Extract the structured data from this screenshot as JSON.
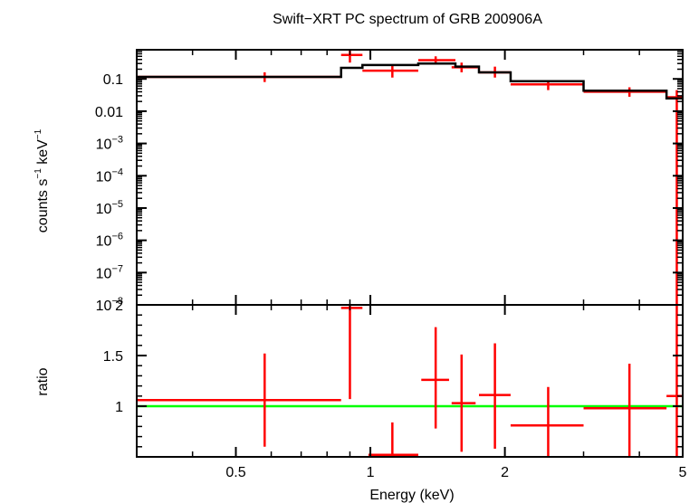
{
  "title": "Swift−XRT PC spectrum of GRB 200906A",
  "chart_data": [
    {
      "type": "line",
      "panel": "spectrum",
      "title": "Swift−XRT PC spectrum of GRB 200906A",
      "ylabel_parts": {
        "a": "counts s",
        "a_exp": "−1",
        "b": " keV",
        "b_exp": "−1"
      },
      "xscale": "log",
      "yscale": "log",
      "xlim": [
        0.3,
        5
      ],
      "ylim": [
        1e-08,
        0.8
      ],
      "grid": false,
      "ytick_labels": [
        {
          "value": 0.1,
          "mant": "0.1",
          "exp": ""
        },
        {
          "value": 0.01,
          "mant": "0.01",
          "exp": ""
        },
        {
          "value": 0.001,
          "mant": "10",
          "exp": "−3"
        },
        {
          "value": 0.0001,
          "mant": "10",
          "exp": "−4"
        },
        {
          "value": 1e-05,
          "mant": "10",
          "exp": "−5"
        },
        {
          "value": 1e-06,
          "mant": "10",
          "exp": "−6"
        },
        {
          "value": 1e-07,
          "mant": "10",
          "exp": "−7"
        },
        {
          "value": 1e-08,
          "mant": "10",
          "exp": "−8"
        }
      ],
      "series": [
        {
          "kind": "data",
          "color": "#ff0000",
          "points": [
            {
              "x": 0.58,
              "xlo": 0.3,
              "xhi": 0.86,
              "y": 0.115,
              "ylo": 0.08,
              "yhi": 0.16
            },
            {
              "x": 0.9,
              "xlo": 0.86,
              "xhi": 0.96,
              "y": 0.55,
              "ylo": 0.32,
              "yhi": 0.8
            },
            {
              "x": 1.12,
              "xlo": 0.96,
              "xhi": 1.28,
              "y": 0.18,
              "ylo": 0.11,
              "yhi": 0.25
            },
            {
              "x": 1.4,
              "xlo": 1.28,
              "xhi": 1.55,
              "y": 0.38,
              "ylo": 0.28,
              "yhi": 0.5
            },
            {
              "x": 1.6,
              "xlo": 1.52,
              "xhi": 1.74,
              "y": 0.23,
              "ylo": 0.16,
              "yhi": 0.32
            },
            {
              "x": 1.9,
              "xlo": 1.75,
              "xhi": 2.06,
              "y": 0.16,
              "ylo": 0.11,
              "yhi": 0.24
            },
            {
              "x": 2.5,
              "xlo": 2.06,
              "xhi": 3.0,
              "y": 0.068,
              "ylo": 0.045,
              "yhi": 0.09
            },
            {
              "x": 3.8,
              "xlo": 3.0,
              "xhi": 4.6,
              "y": 0.04,
              "ylo": 0.028,
              "yhi": 0.055
            },
            {
              "x": 4.85,
              "xlo": 4.6,
              "xhi": 5.0,
              "y": 0.027,
              "ylo": 1e-08,
              "yhi": 0.045
            }
          ]
        },
        {
          "kind": "model",
          "color": "#000000",
          "edges": [
            0.3,
            0.86,
            0.96,
            1.28,
            1.55,
            1.75,
            2.06,
            3.0,
            4.6,
            5.0
          ],
          "values": [
            0.115,
            0.22,
            0.27,
            0.3,
            0.24,
            0.16,
            0.085,
            0.043,
            0.025
          ]
        }
      ]
    },
    {
      "type": "line",
      "panel": "ratio",
      "ylabel": "ratio",
      "xlabel": "Energy (keV)",
      "xscale": "log",
      "xlim": [
        0.3,
        5
      ],
      "ylim": [
        0.5,
        2.0
      ],
      "grid": false,
      "xtick_labels": [
        {
          "value": 0.5,
          "label": "0.5"
        },
        {
          "value": 1,
          "label": "1"
        },
        {
          "value": 2,
          "label": "2"
        },
        {
          "value": 5,
          "label": "5"
        }
      ],
      "ytick_labels": [
        {
          "value": 1,
          "label": "1"
        },
        {
          "value": 1.5,
          "label": "1.5"
        },
        {
          "value": 2,
          "label": "2"
        }
      ],
      "reference_line": {
        "y": 1,
        "color": "#00ff00"
      },
      "series": [
        {
          "kind": "data",
          "color": "#ff0000",
          "points": [
            {
              "x": 0.58,
              "xlo": 0.3,
              "xhi": 0.86,
              "y": 1.06,
              "ylo": 0.6,
              "yhi": 1.52
            },
            {
              "x": 0.9,
              "xlo": 0.86,
              "xhi": 0.96,
              "y": 1.97,
              "ylo": 1.07,
              "yhi": 2.0
            },
            {
              "x": 1.12,
              "xlo": 0.99,
              "xhi": 1.28,
              "y": 0.52,
              "ylo": 0.5,
              "yhi": 0.84
            },
            {
              "x": 1.4,
              "xlo": 1.3,
              "xhi": 1.5,
              "y": 1.26,
              "ylo": 0.78,
              "yhi": 1.78
            },
            {
              "x": 1.6,
              "xlo": 1.52,
              "xhi": 1.72,
              "y": 1.03,
              "ylo": 0.55,
              "yhi": 1.51
            },
            {
              "x": 1.9,
              "xlo": 1.75,
              "xhi": 2.06,
              "y": 1.11,
              "ylo": 0.58,
              "yhi": 1.62
            },
            {
              "x": 2.5,
              "xlo": 2.06,
              "xhi": 3.0,
              "y": 0.81,
              "ylo": 0.45,
              "yhi": 1.19
            },
            {
              "x": 3.8,
              "xlo": 3.0,
              "xhi": 4.6,
              "y": 0.98,
              "ylo": 0.5,
              "yhi": 1.42
            },
            {
              "x": 4.85,
              "xlo": 4.6,
              "xhi": 5.0,
              "y": 1.1,
              "ylo": 0.5,
              "yhi": 2.0
            }
          ]
        }
      ]
    }
  ]
}
